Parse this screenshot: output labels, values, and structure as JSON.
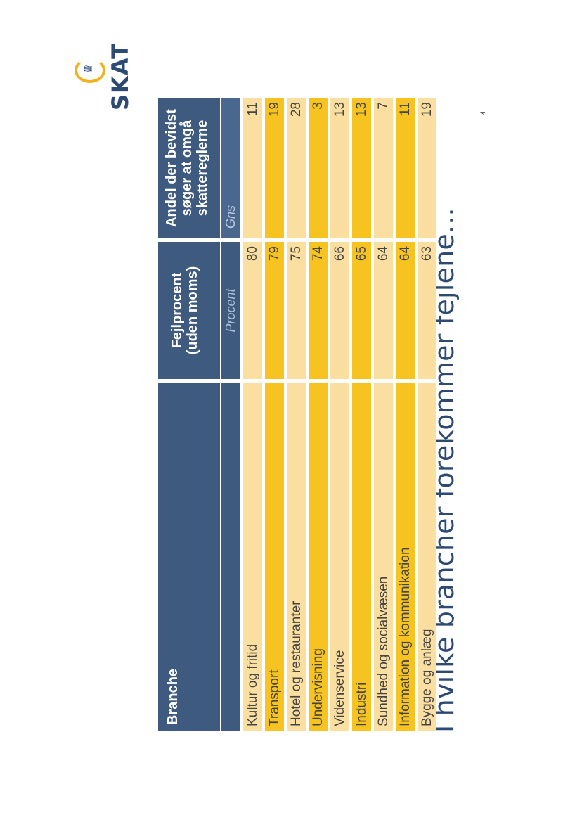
{
  "title": "I hvilke brancher forekommer fejlene...",
  "logo": {
    "text": "SKAT",
    "icon": "crown-icon"
  },
  "page_number": "4",
  "table": {
    "headers": [
      "Branche",
      "Fejlprocent (uden moms)",
      "Andel der bevidst søger at omgå skattereglerne"
    ],
    "header_lines": {
      "col2": [
        "Fejlprocent",
        "(uden moms)"
      ],
      "col3": [
        "Andel der bevidst",
        "søger at omgå",
        "skattereglerne"
      ]
    },
    "subheaders": [
      "",
      "Procent",
      "Gns"
    ],
    "rows": [
      {
        "branche": "Kultur og fritid",
        "fejlprocent": "80",
        "andel": "11"
      },
      {
        "branche": "Transport",
        "fejlprocent": "79",
        "andel": "19"
      },
      {
        "branche": "Hotel og restauranter",
        "fejlprocent": "75",
        "andel": "28"
      },
      {
        "branche": "Undervisning",
        "fejlprocent": "74",
        "andel": "3"
      },
      {
        "branche": "Videnservice",
        "fejlprocent": "66",
        "andel": "13"
      },
      {
        "branche": "Industri",
        "fejlprocent": "65",
        "andel": "13"
      },
      {
        "branche": "Sundhed og socialvæsen",
        "fejlprocent": "64",
        "andel": "7"
      },
      {
        "branche": "Information og kommunikation",
        "fejlprocent": "64",
        "andel": "11"
      },
      {
        "branche": "Bygge og anlæg",
        "fejlprocent": "63",
        "andel": "19"
      }
    ]
  },
  "colors": {
    "header": "#3e5a7e",
    "row_light": "#fbdfa0",
    "row_dark": "#f6c321",
    "title": "#2c4a72",
    "logo_accent": "#f2b21e"
  }
}
